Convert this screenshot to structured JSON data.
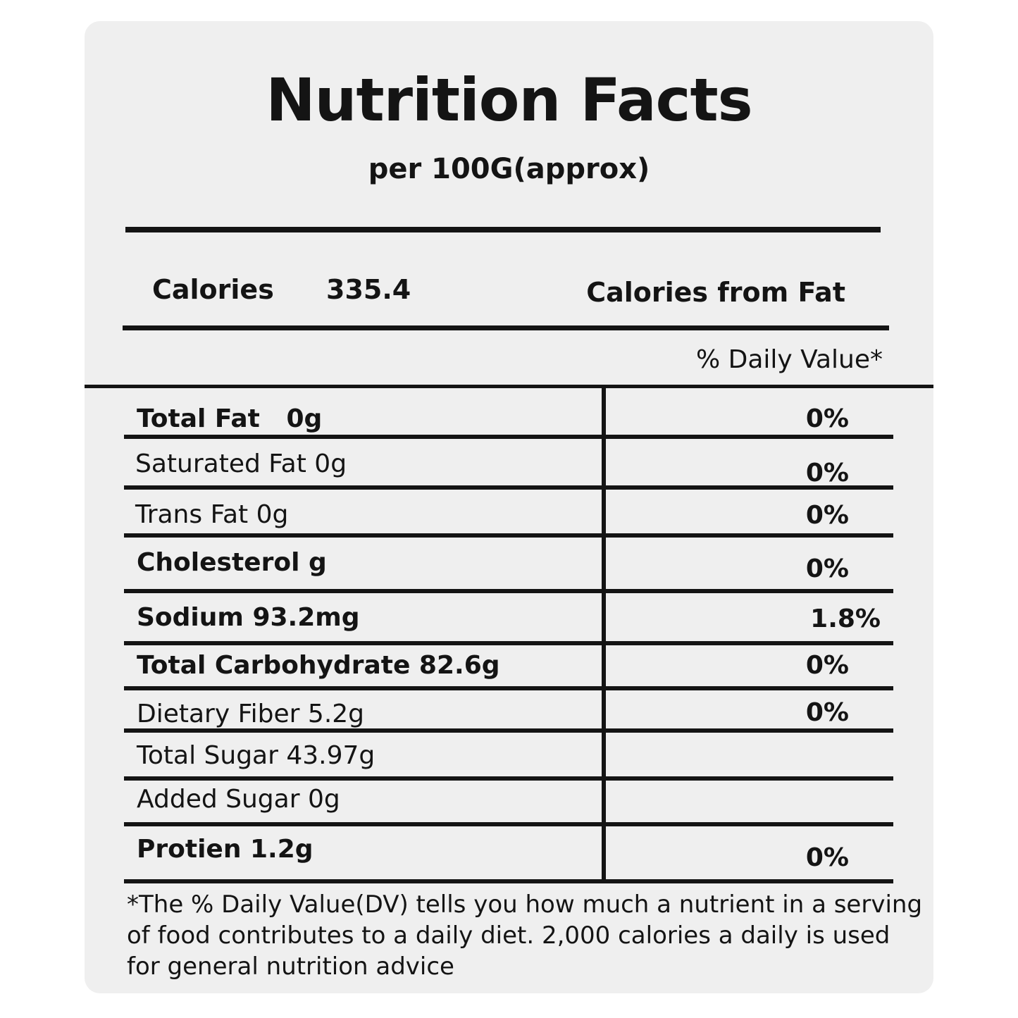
{
  "label": {
    "title": "Nutrition Facts",
    "subtitle": "per 100G(approx)",
    "calories_label": "Calories",
    "calories_value": "335.4",
    "calories_from_fat_label": "Calories from Fat",
    "daily_value_header": "% Daily Value*",
    "rows": [
      {
        "label": "Total Fat   0g",
        "dv": "0%",
        "bold": true
      },
      {
        "label": "Saturated Fat 0g",
        "dv": "0%",
        "bold": false
      },
      {
        "label": "Trans Fat 0g",
        "dv": "0%",
        "bold": false
      },
      {
        "label": "Cholesterol g",
        "dv": "0%",
        "bold": true
      },
      {
        "label": "Sodium 93.2mg",
        "dv": "1.8%",
        "bold": true
      },
      {
        "label": "Total Carbohydrate 82.6g",
        "dv": "0%",
        "bold": true
      },
      {
        "label": "Dietary Fiber 5.2g",
        "dv": "0%",
        "bold": false
      },
      {
        "label": "Total Sugar 43.97g",
        "dv": "",
        "bold": false
      },
      {
        "label": "Added Sugar 0g",
        "dv": "",
        "bold": false
      },
      {
        "label": "Protien 1.2g",
        "dv": "0%",
        "bold": true
      }
    ],
    "footnote": "*The % Daily Value(DV) tells you how much a nutrient in a serving of food contributes to a daily diet. 2,000 calories a daily is used for general nutrition advice"
  }
}
